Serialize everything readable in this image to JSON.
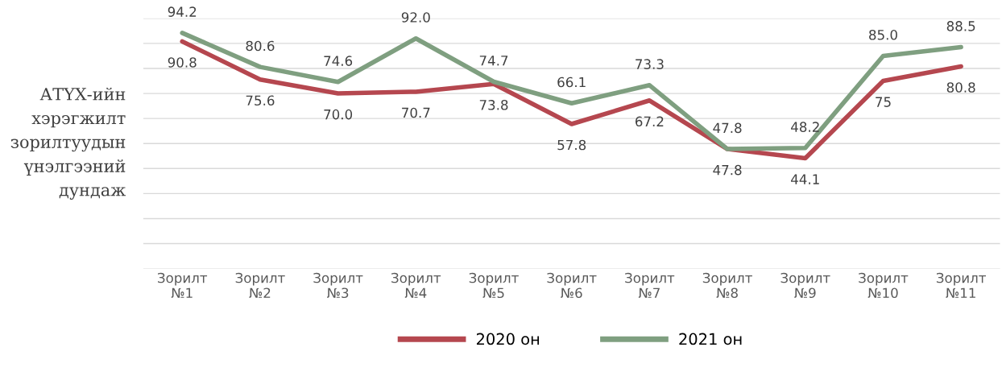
{
  "chart_data": {
    "type": "line",
    "ylabel": "АТҮХ-ийн\nхэрэгжилт\nзорилтуудын\nүнэлгээний\nдундаж",
    "categories": [
      "Зорилт\n№1",
      "Зорилт\n№2",
      "Зорилт\n№3",
      "Зорилт\n№4",
      "Зорилт\n№5",
      "Зорилт\n№6",
      "Зорилт\n№7",
      "Зорилт\n№8",
      "Зорилт\n№9",
      "Зорилт\n№10",
      "Зорилт\n№11"
    ],
    "series": [
      {
        "name": "2020 он",
        "color": "#b5474f",
        "values": [
          90.8,
          75.6,
          70.0,
          70.7,
          73.8,
          57.8,
          67.2,
          47.8,
          44.1,
          75,
          80.8
        ],
        "value_labels": [
          "90.8",
          "75.6",
          "70.0",
          "70.7",
          "73.8",
          "57.8",
          "67.2",
          "47.8",
          "44.1",
          "75",
          "80.8"
        ]
      },
      {
        "name": "2021 он",
        "color": "#7f9f80",
        "values": [
          94.2,
          80.6,
          74.6,
          92.0,
          74.7,
          66.1,
          73.3,
          47.8,
          48.2,
          85.0,
          88.5
        ],
        "value_labels": [
          "94.2",
          "80.6",
          "74.6",
          "92.0",
          "74.7",
          "66.1",
          "73.3",
          "47.8",
          "48.2",
          "85.0",
          "88.5"
        ]
      }
    ],
    "ylim": [
      0,
      100
    ],
    "yticks": [
      {
        "value": 0,
        "label": null
      },
      {
        "value": 10,
        "label": null
      },
      {
        "value": 20,
        "label": null
      },
      {
        "value": 30,
        "label": null
      },
      {
        "value": 40,
        "label": null
      },
      {
        "value": 50,
        "label": null
      },
      {
        "value": 60,
        "label": null
      },
      {
        "value": 70,
        "label": null
      },
      {
        "value": 80,
        "label": null
      },
      {
        "value": 90,
        "label": null
      },
      {
        "value": 100,
        "label": null
      }
    ],
    "grid": "y",
    "legend": "bottom",
    "marker": "none",
    "line_style": "solid"
  }
}
